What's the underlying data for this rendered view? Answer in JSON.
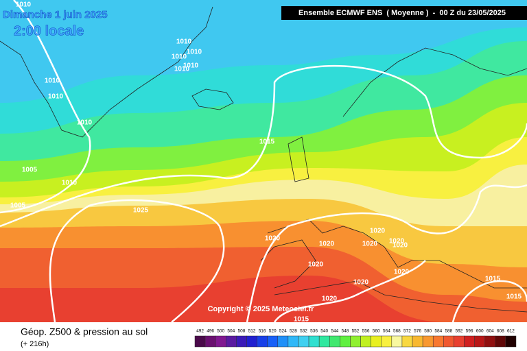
{
  "header": {
    "date": "Dimanche 1 juin 2025",
    "local_time": "2:00 locale",
    "model": "Ensemble ECMWF ENS  ( Moyenne )  -  00 Z du 23/05/2025"
  },
  "copyright": "Copyright © 2025 Meteociel.fr",
  "isobar_labels": [
    "1010",
    "1010",
    "1010",
    "1010",
    "1010",
    "1010",
    "1010",
    "1010",
    "1010",
    "1005",
    "1010",
    "1005",
    "1025",
    "1015",
    "1020",
    "1020",
    "1020",
    "1020",
    "1020",
    "1020",
    "1020",
    "1020",
    "1020",
    "1020",
    "1015",
    "1015",
    "1015"
  ],
  "footer": {
    "title": "Géop. Z500 & pression au sol",
    "lead": "(+ 216h)"
  },
  "legend": {
    "values": [
      492,
      496,
      500,
      504,
      508,
      512,
      516,
      520,
      524,
      528,
      532,
      536,
      540,
      544,
      548,
      552,
      556,
      560,
      564,
      568,
      572,
      576,
      580,
      584,
      588,
      592,
      596,
      600,
      604,
      608,
      612
    ],
    "colors": [
      "#4a0a4a",
      "#6a1070",
      "#801890",
      "#5a1aa0",
      "#3a1ab8",
      "#2020d0",
      "#1840e8",
      "#1860f8",
      "#2090f8",
      "#30b8f8",
      "#40d0f0",
      "#30e0d0",
      "#30e8a0",
      "#40e870",
      "#60f040",
      "#90f030",
      "#c0f020",
      "#e8f020",
      "#f8f040",
      "#f8f8a0",
      "#f8d840",
      "#f8b830",
      "#f89830",
      "#f87830",
      "#f05830",
      "#e84030",
      "#d02020",
      "#b81818",
      "#901010",
      "#600808",
      "#200000"
    ]
  }
}
